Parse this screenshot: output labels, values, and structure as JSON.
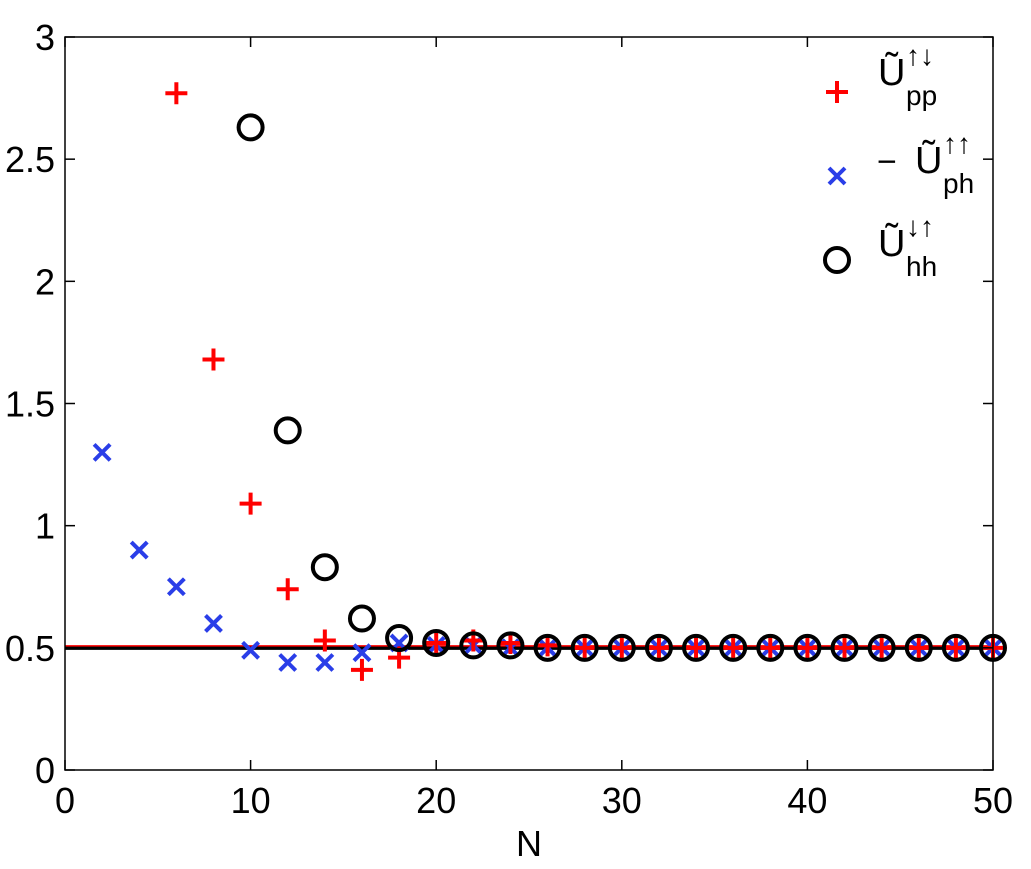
{
  "chart_data": {
    "type": "scatter",
    "xlabel": "N",
    "ylabel": "",
    "xlim": [
      0,
      50
    ],
    "ylim": [
      0,
      3
    ],
    "xticks": [
      0,
      10,
      20,
      30,
      40,
      50
    ],
    "yticks": [
      0,
      0.5,
      1,
      1.5,
      2,
      2.5,
      3
    ],
    "ytick_labels": [
      "0",
      "0.5",
      "1",
      "1.5",
      "2",
      "2.5",
      "3"
    ],
    "grid": false,
    "legend_position": "top-right",
    "reference_lines": [
      {
        "y": 0.5,
        "color": "#000000"
      },
      {
        "y": 0.5,
        "color": "#ff0000"
      }
    ],
    "series": [
      {
        "name": "Ũpp↑↓",
        "legend_main": "Ũ",
        "legend_sub": "pp",
        "legend_sup": "↑↓",
        "legend_prefix": "",
        "marker": "plus",
        "color": "#ff0000",
        "x": [
          6,
          8,
          10,
          12,
          14,
          16,
          18,
          20,
          22,
          24,
          26,
          28,
          30,
          32,
          34,
          36,
          38,
          40,
          42,
          44,
          46,
          48,
          50
        ],
        "y": [
          2.77,
          1.68,
          1.09,
          0.74,
          0.53,
          0.41,
          0.46,
          0.52,
          0.53,
          0.52,
          0.51,
          0.5,
          0.5,
          0.5,
          0.5,
          0.5,
          0.5,
          0.5,
          0.5,
          0.5,
          0.5,
          0.5,
          0.5
        ]
      },
      {
        "name": "− Ũph↑↑",
        "legend_main": "Ũ",
        "legend_sub": "ph",
        "legend_sup": "↑↑",
        "legend_prefix": "−",
        "marker": "x",
        "color": "#2a3ee8",
        "x": [
          2,
          4,
          6,
          8,
          10,
          12,
          14,
          16,
          18,
          20,
          22,
          24,
          26,
          28,
          30,
          32,
          34,
          36,
          38,
          40,
          42,
          44,
          46,
          48,
          50
        ],
        "y": [
          1.3,
          0.9,
          0.75,
          0.6,
          0.49,
          0.44,
          0.44,
          0.48,
          0.52,
          0.51,
          0.51,
          0.5,
          0.5,
          0.5,
          0.5,
          0.5,
          0.5,
          0.5,
          0.5,
          0.5,
          0.5,
          0.5,
          0.5,
          0.5,
          0.5
        ]
      },
      {
        "name": "Ũhh↓↑",
        "legend_main": "Ũ",
        "legend_sub": "hh",
        "legend_sup": "↓↑",
        "legend_prefix": "",
        "marker": "circle",
        "color": "#000000",
        "x": [
          10,
          12,
          14,
          16,
          18,
          20,
          22,
          24,
          26,
          28,
          30,
          32,
          34,
          36,
          38,
          40,
          42,
          44,
          46,
          48,
          50
        ],
        "y": [
          2.63,
          1.39,
          0.83,
          0.62,
          0.54,
          0.52,
          0.51,
          0.51,
          0.5,
          0.5,
          0.5,
          0.5,
          0.5,
          0.5,
          0.5,
          0.5,
          0.5,
          0.5,
          0.5,
          0.5,
          0.5
        ]
      }
    ]
  }
}
